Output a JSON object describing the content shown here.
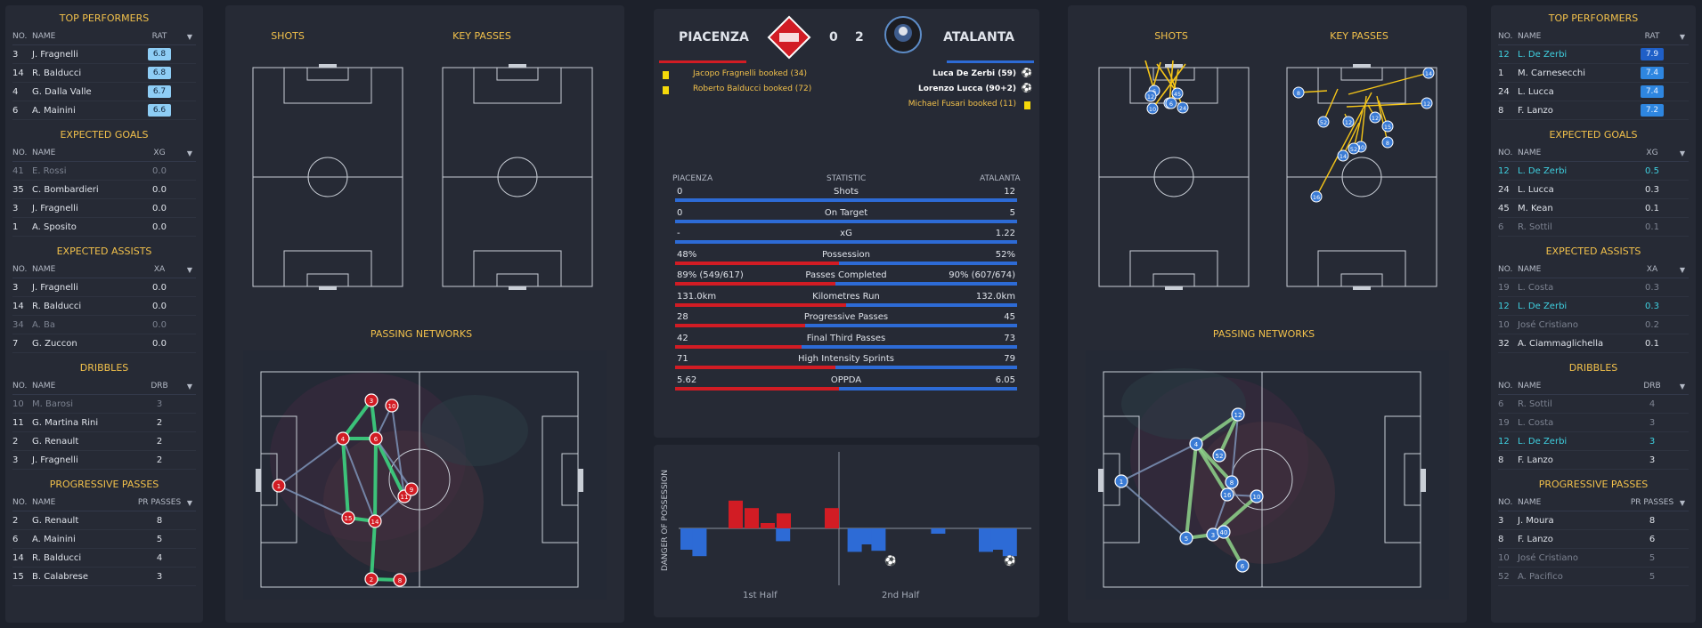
{
  "left_panel": {
    "top_performers": {
      "title": "TOP PERFORMERS",
      "headers": [
        "NO.",
        "NAME",
        "RAT"
      ],
      "rows": [
        [
          "3",
          "J. Fragnelli",
          "6.8"
        ],
        [
          "14",
          "R. Balducci",
          "6.8"
        ],
        [
          "4",
          "G. Dalla Valle",
          "6.7"
        ],
        [
          "6",
          "A. Mainini",
          "6.6"
        ]
      ]
    },
    "expected_goals": {
      "title": "EXPECTED GOALS",
      "headers": [
        "NO.",
        "NAME",
        "XG"
      ],
      "rows": [
        [
          "41",
          "E. Rossi",
          "0.0"
        ],
        [
          "35",
          "C. Bombardieri",
          "0.0"
        ],
        [
          "3",
          "J. Fragnelli",
          "0.0"
        ],
        [
          "1",
          "A. Sposito",
          "0.0"
        ]
      ]
    },
    "expected_assists": {
      "title": "EXPECTED ASSISTS",
      "headers": [
        "NO.",
        "NAME",
        "XA"
      ],
      "rows": [
        [
          "3",
          "J. Fragnelli",
          "0.0"
        ],
        [
          "14",
          "R. Balducci",
          "0.0"
        ],
        [
          "34",
          "A. Ba",
          "0.0"
        ],
        [
          "7",
          "G. Zuccon",
          "0.0"
        ]
      ]
    },
    "dribbles": {
      "title": "DRIBBLES",
      "headers": [
        "NO.",
        "NAME",
        "DRB"
      ],
      "rows": [
        [
          "10",
          "M. Barosi",
          "3"
        ],
        [
          "11",
          "G. Martina Rini",
          "2"
        ],
        [
          "2",
          "G. Renault",
          "2"
        ],
        [
          "3",
          "J. Fragnelli",
          "2"
        ]
      ]
    },
    "progressive_passes": {
      "title": "PROGRESSIVE PASSES",
      "headers": [
        "NO.",
        "NAME",
        "PR PASSES"
      ],
      "rows": [
        [
          "2",
          "G. Renault",
          "8"
        ],
        [
          "6",
          "A. Mainini",
          "5"
        ],
        [
          "14",
          "R. Balducci",
          "4"
        ],
        [
          "15",
          "B. Calabrese",
          "3"
        ]
      ]
    }
  },
  "right_panel": {
    "top_performers": {
      "title": "TOP PERFORMERS",
      "headers": [
        "NO.",
        "NAME",
        "RAT"
      ],
      "rows": [
        [
          "12",
          "L. De Zerbi",
          "7.9"
        ],
        [
          "1",
          "M. Carnesecchi",
          "7.4"
        ],
        [
          "24",
          "L. Lucca",
          "7.4"
        ],
        [
          "8",
          "F. Lanzo",
          "7.2"
        ]
      ]
    },
    "expected_goals": {
      "title": "EXPECTED GOALS",
      "headers": [
        "NO.",
        "NAME",
        "XG"
      ],
      "rows": [
        [
          "12",
          "L. De Zerbi",
          "0.5"
        ],
        [
          "24",
          "L. Lucca",
          "0.3"
        ],
        [
          "45",
          "M. Kean",
          "0.1"
        ],
        [
          "6",
          "R. Sottil",
          "0.1"
        ]
      ]
    },
    "expected_assists": {
      "title": "EXPECTED ASSISTS",
      "headers": [
        "NO.",
        "NAME",
        "XA"
      ],
      "rows": [
        [
          "19",
          "L. Costa",
          "0.3"
        ],
        [
          "12",
          "L. De Zerbi",
          "0.3"
        ],
        [
          "10",
          "José Cristiano",
          "0.2"
        ],
        [
          "32",
          "A. Ciammaglichella",
          "0.1"
        ]
      ]
    },
    "dribbles": {
      "title": "DRIBBLES",
      "headers": [
        "NO.",
        "NAME",
        "DRB"
      ],
      "rows": [
        [
          "6",
          "R. Sottil",
          "4"
        ],
        [
          "19",
          "L. Costa",
          "3"
        ],
        [
          "12",
          "L. De Zerbi",
          "3"
        ],
        [
          "8",
          "F. Lanzo",
          "3"
        ]
      ]
    },
    "progressive_passes": {
      "title": "PROGRESSIVE PASSES",
      "headers": [
        "NO.",
        "NAME",
        "PR PASSES"
      ],
      "rows": [
        [
          "3",
          "J. Moura",
          "8"
        ],
        [
          "8",
          "F. Lanzo",
          "6"
        ],
        [
          "10",
          "José Cristiano",
          "5"
        ],
        [
          "52",
          "A. Pacifico",
          "5"
        ]
      ]
    }
  },
  "home_shots": {
    "shots_title": "SHOTS",
    "key_passes_title": "KEY PASSES",
    "networks_title": "PASSING NETWORKS"
  },
  "away_shots": {
    "shots_title": "SHOTS",
    "key_passes_title": "KEY PASSES",
    "networks_title": "PASSING NETWORKS"
  },
  "scoreboard": {
    "home_team": "PIACENZA",
    "away_team": "ATALANTA",
    "home_score": "0",
    "away_score": "2",
    "home_events": [
      "Jacopo Fragnelli booked (34)",
      "Roberto Balducci booked (72)"
    ],
    "away_events": [
      "Luca De Zerbi (59)",
      "Lorenzo Lucca (90+2)",
      "Michael Fusari booked (11)"
    ],
    "colors": {
      "home": "#d21c24",
      "away": "#2d6bd6",
      "card": "#f5d90a"
    }
  },
  "stats": {
    "header": {
      "home": "PIACENZA",
      "mid": "STATISTIC",
      "away": "ATALANTA"
    },
    "rows": [
      {
        "label": "Shots",
        "home": "0",
        "away": "12",
        "home_share": 0
      },
      {
        "label": "On Target",
        "home": "0",
        "away": "5",
        "home_share": 0
      },
      {
        "label": "xG",
        "home": "-",
        "away": "1.22",
        "home_share": 0
      },
      {
        "label": "Possession",
        "home": "48%",
        "away": "52%",
        "home_share": 0.48
      },
      {
        "label": "Passes Completed",
        "home": "89% (549/617)",
        "away": "90% (607/674)",
        "home_share": 0.47
      },
      {
        "label": "Kilometres Run",
        "home": "131.0km",
        "away": "132.0km",
        "home_share": 0.5
      },
      {
        "label": "Progressive Passes",
        "home": "28",
        "away": "45",
        "home_share": 0.38
      },
      {
        "label": "Final Third Passes",
        "home": "42",
        "away": "73",
        "home_share": 0.37
      },
      {
        "label": "High Intensity Sprints",
        "home": "71",
        "away": "79",
        "home_share": 0.47
      },
      {
        "label": "OPPDA",
        "home": "5.62",
        "away": "6.05",
        "home_share": 0.48
      }
    ]
  },
  "danger_chart": {
    "ylabel": "DANGER OF POSSESSION",
    "first_half": "1st Half",
    "second_half": "2nd Half",
    "bars": [
      -2,
      -2.6,
      0,
      0,
      0,
      0,
      0,
      0,
      -1.2,
      0,
      0,
      0,
      0,
      0,
      -2.2,
      -1.5,
      -2.1,
      0,
      0,
      0,
      0,
      -0.5,
      0,
      0,
      0,
      -2.2,
      -2,
      -2.6
    ],
    "home_bars": [
      0,
      0,
      2.6,
      1.9,
      0.5,
      1.4,
      0,
      1.9
    ],
    "goal_markers": [
      17,
      27
    ]
  },
  "away_key_pass_numbers": [
    "14",
    "12",
    "8",
    "52",
    "12",
    "12",
    "40",
    "15",
    "8",
    "16",
    "14",
    "52"
  ],
  "away_shot_numbers": [
    "6",
    "45",
    "12",
    "12",
    "24",
    "10",
    "6"
  ]
}
